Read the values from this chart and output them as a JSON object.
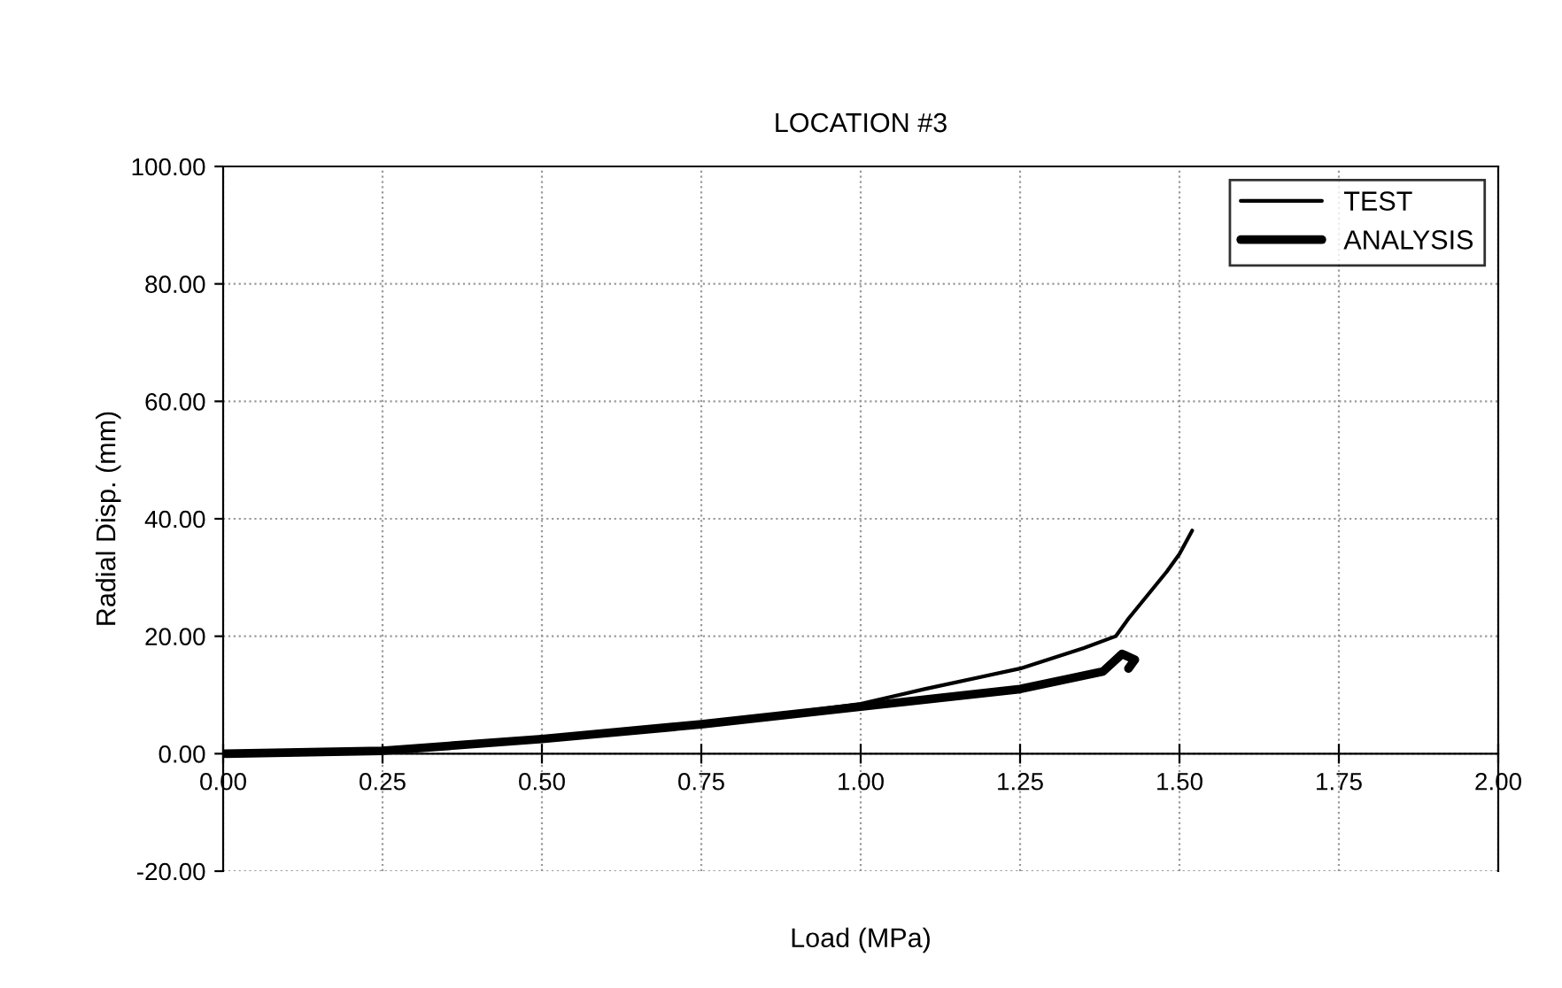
{
  "chart_data": {
    "type": "line",
    "title": "LOCATION #3",
    "xlabel": "Load (MPa)",
    "ylabel": "Radial Disp. (mm)",
    "xlim": [
      0,
      2
    ],
    "ylim": [
      -20,
      100
    ],
    "xticks": [
      {
        "value": 0,
        "label": "0.00"
      },
      {
        "value": 0.25,
        "label": "0.25"
      },
      {
        "value": 0.5,
        "label": "0.50"
      },
      {
        "value": 0.75,
        "label": "0.75"
      },
      {
        "value": 1,
        "label": "1.00"
      },
      {
        "value": 1.25,
        "label": "1.25"
      },
      {
        "value": 1.5,
        "label": "1.50"
      },
      {
        "value": 1.75,
        "label": "1.75"
      },
      {
        "value": 2,
        "label": "2.00"
      }
    ],
    "yticks": [
      {
        "value": -20,
        "label": "-20.00"
      },
      {
        "value": 0,
        "label": "0.00"
      },
      {
        "value": 20,
        "label": "20.00"
      },
      {
        "value": 40,
        "label": "40.00"
      },
      {
        "value": 60,
        "label": "60.00"
      },
      {
        "value": 80,
        "label": "80.00"
      },
      {
        "value": 100,
        "label": "100.00"
      }
    ],
    "grid": true,
    "legend": "top right",
    "marker": "none",
    "series": [
      {
        "name": "TEST",
        "color": "#000000",
        "x": [
          0,
          0.25,
          0.5,
          0.75,
          1.0,
          1.1,
          1.25,
          1.35,
          1.4,
          1.42,
          1.45,
          1.48,
          1.5,
          1.52
        ],
        "values": [
          0,
          0.8,
          2.8,
          5,
          8.5,
          11,
          14.5,
          18,
          20,
          23,
          27,
          31,
          34,
          38
        ]
      },
      {
        "name": "ANALYSIS",
        "color": "#000000",
        "x": [
          0,
          0.25,
          0.5,
          0.75,
          1.0,
          1.25,
          1.38,
          1.41,
          1.43,
          1.42
        ],
        "values": [
          0,
          0.5,
          2.5,
          5,
          8,
          11,
          14,
          17,
          16,
          14.5
        ]
      }
    ]
  }
}
